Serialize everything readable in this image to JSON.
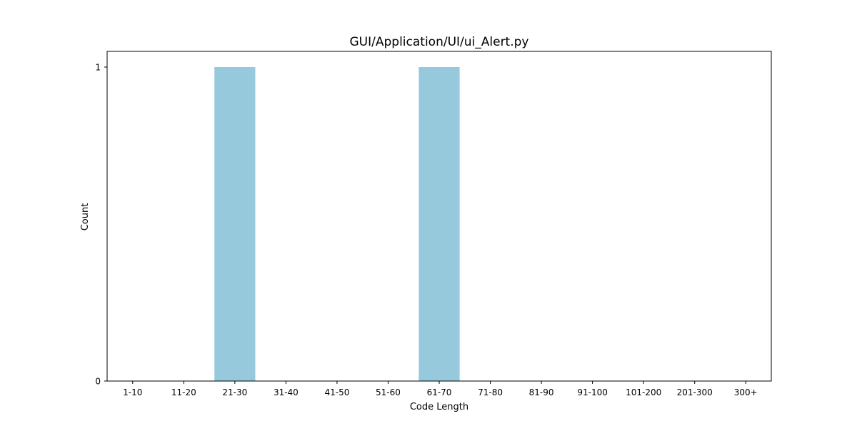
{
  "chart_data": {
    "type": "bar",
    "title": "GUI/Application/UI/ui_Alert.py",
    "xlabel": "Code Length",
    "ylabel": "Count",
    "categories": [
      "1-10",
      "11-20",
      "21-30",
      "31-40",
      "41-50",
      "51-60",
      "61-70",
      "71-80",
      "81-90",
      "91-100",
      "101-200",
      "201-300",
      "300+"
    ],
    "values": [
      0,
      0,
      1,
      0,
      0,
      0,
      1,
      0,
      0,
      0,
      0,
      0,
      0
    ],
    "ylim": [
      0,
      1.05
    ],
    "yticks": [
      0,
      1
    ],
    "grid": false,
    "bar_color": "#96c9dc"
  }
}
